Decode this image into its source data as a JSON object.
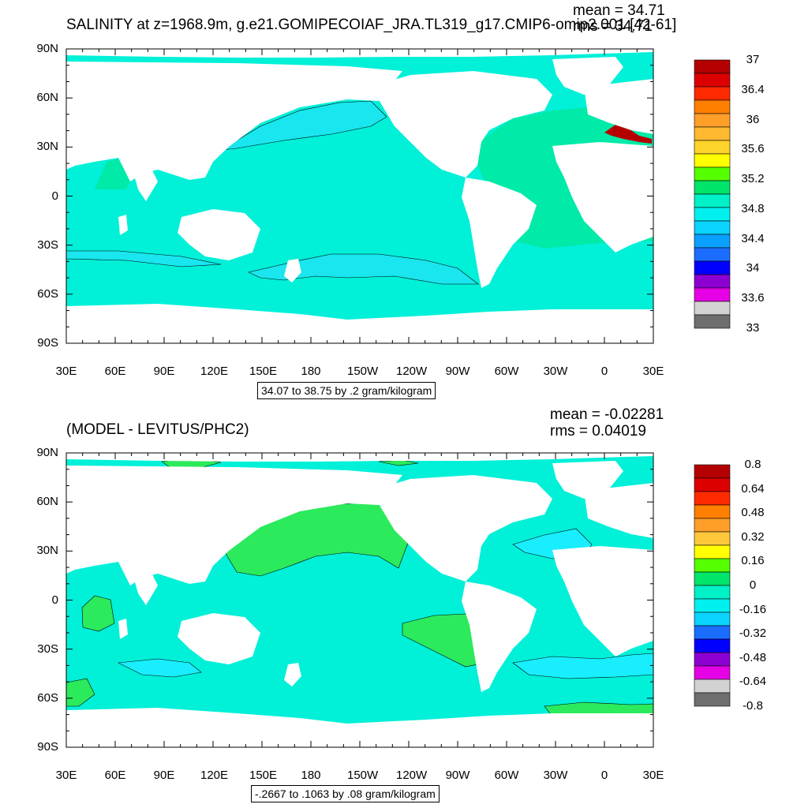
{
  "top_panel": {
    "title": "SALINITY at z=1968.9m, g.e21.GOMIPECOIAF_JRA.TL319_g17.CMIP6-omip2.001 [42-61]",
    "mean_text": "mean = 34.71",
    "rms_text": "rms = 34.71",
    "range_text": "34.07 to 38.75 by .2 gram/kilogram",
    "colorbar_labels": [
      "37",
      "36.4",
      "36",
      "35.6",
      "35.2",
      "34.8",
      "34.4",
      "34",
      "33.6",
      "33"
    ],
    "colorbar_colors": [
      "#b40000",
      "#dc0000",
      "#ff2a00",
      "#ff7f00",
      "#ff9f2a",
      "#ffb830",
      "#ffd42a",
      "#ffff00",
      "#55ff00",
      "#00e46a",
      "#00f0c8",
      "#00f0f0",
      "#0ad4ff",
      "#0aa0ff",
      "#1a6dff",
      "#0000ff",
      "#8c00d2",
      "#e600e6",
      "#d2d2d2",
      "#6e6e6e"
    ]
  },
  "bottom_panel": {
    "title": "(MODEL - LEVITUS/PHC2)",
    "mean_text": "mean = -0.02281",
    "rms_text": "rms = 0.04019",
    "range_text": "-.2667 to .1063 by .08 gram/kilogram",
    "colorbar_labels": [
      "0.8",
      "0.64",
      "0.48",
      "0.32",
      "0.16",
      "0",
      "-0.16",
      "-0.32",
      "-0.48",
      "-0.64",
      "-0.8"
    ],
    "colorbar_colors": [
      "#b40000",
      "#dc0000",
      "#ff2a00",
      "#ff7f00",
      "#ff9f2a",
      "#ffc83c",
      "#ffff00",
      "#55ff00",
      "#00e46a",
      "#00f0c8",
      "#00f0f0",
      "#0ad4ff",
      "#1a6dff",
      "#0000ff",
      "#8c00d2",
      "#e600e6",
      "#d2d2d2",
      "#6e6e6e"
    ]
  },
  "axes": {
    "lat_labels": [
      "90N",
      "60N",
      "30N",
      "0",
      "30S",
      "60S",
      "90S"
    ],
    "lon_labels": [
      "30E",
      "60E",
      "90E",
      "120E",
      "150E",
      "180",
      "150W",
      "120W",
      "90W",
      "60W",
      "30W",
      "0",
      "30E"
    ]
  },
  "colors": {
    "ocean_top": "#00f0d8",
    "ocean_top_band": "#19e6ee",
    "ocean_top_atlantic": "#00eaa8",
    "ocean_bottom": "#00f0d8",
    "ocean_bottom_pos": "#2bea5c",
    "ocean_bottom_neg": "#19eeff",
    "land": "#ffffff"
  }
}
